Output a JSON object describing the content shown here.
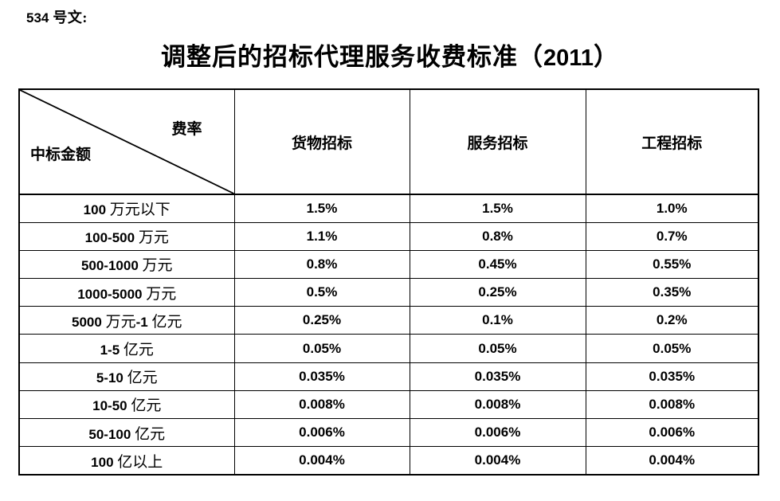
{
  "doc_number": "534 号文:",
  "title": "调整后的招标代理服务收费标准（2011）",
  "table": {
    "corner": {
      "top_right": "费率",
      "bottom_left": "中标金额"
    },
    "columns": [
      "货物招标",
      "服务招标",
      "工程招标"
    ],
    "rows": [
      {
        "label": "100 万元以下",
        "values": [
          "1.5%",
          "1.5%",
          "1.0%"
        ]
      },
      {
        "label": "100-500 万元",
        "values": [
          "1.1%",
          "0.8%",
          "0.7%"
        ]
      },
      {
        "label": "500-1000 万元",
        "values": [
          "0.8%",
          "0.45%",
          "0.55%"
        ]
      },
      {
        "label": "1000-5000 万元",
        "values": [
          "0.5%",
          "0.25%",
          "0.35%"
        ]
      },
      {
        "label": "5000 万元-1 亿元",
        "values": [
          "0.25%",
          "0.1%",
          "0.2%"
        ]
      },
      {
        "label": "1-5 亿元",
        "values": [
          "0.05%",
          "0.05%",
          "0.05%"
        ]
      },
      {
        "label": "5-10 亿元",
        "values": [
          "0.035%",
          "0.035%",
          "0.035%"
        ]
      },
      {
        "label": "10-50 亿元",
        "values": [
          "0.008%",
          "0.008%",
          "0.008%"
        ]
      },
      {
        "label": "50-100 亿元",
        "values": [
          "0.006%",
          "0.006%",
          "0.006%"
        ]
      },
      {
        "label": "100 亿以上",
        "values": [
          "0.004%",
          "0.004%",
          "0.004%"
        ]
      }
    ]
  },
  "colors": {
    "text": "#000000",
    "border": "#000000",
    "background": "#ffffff"
  }
}
